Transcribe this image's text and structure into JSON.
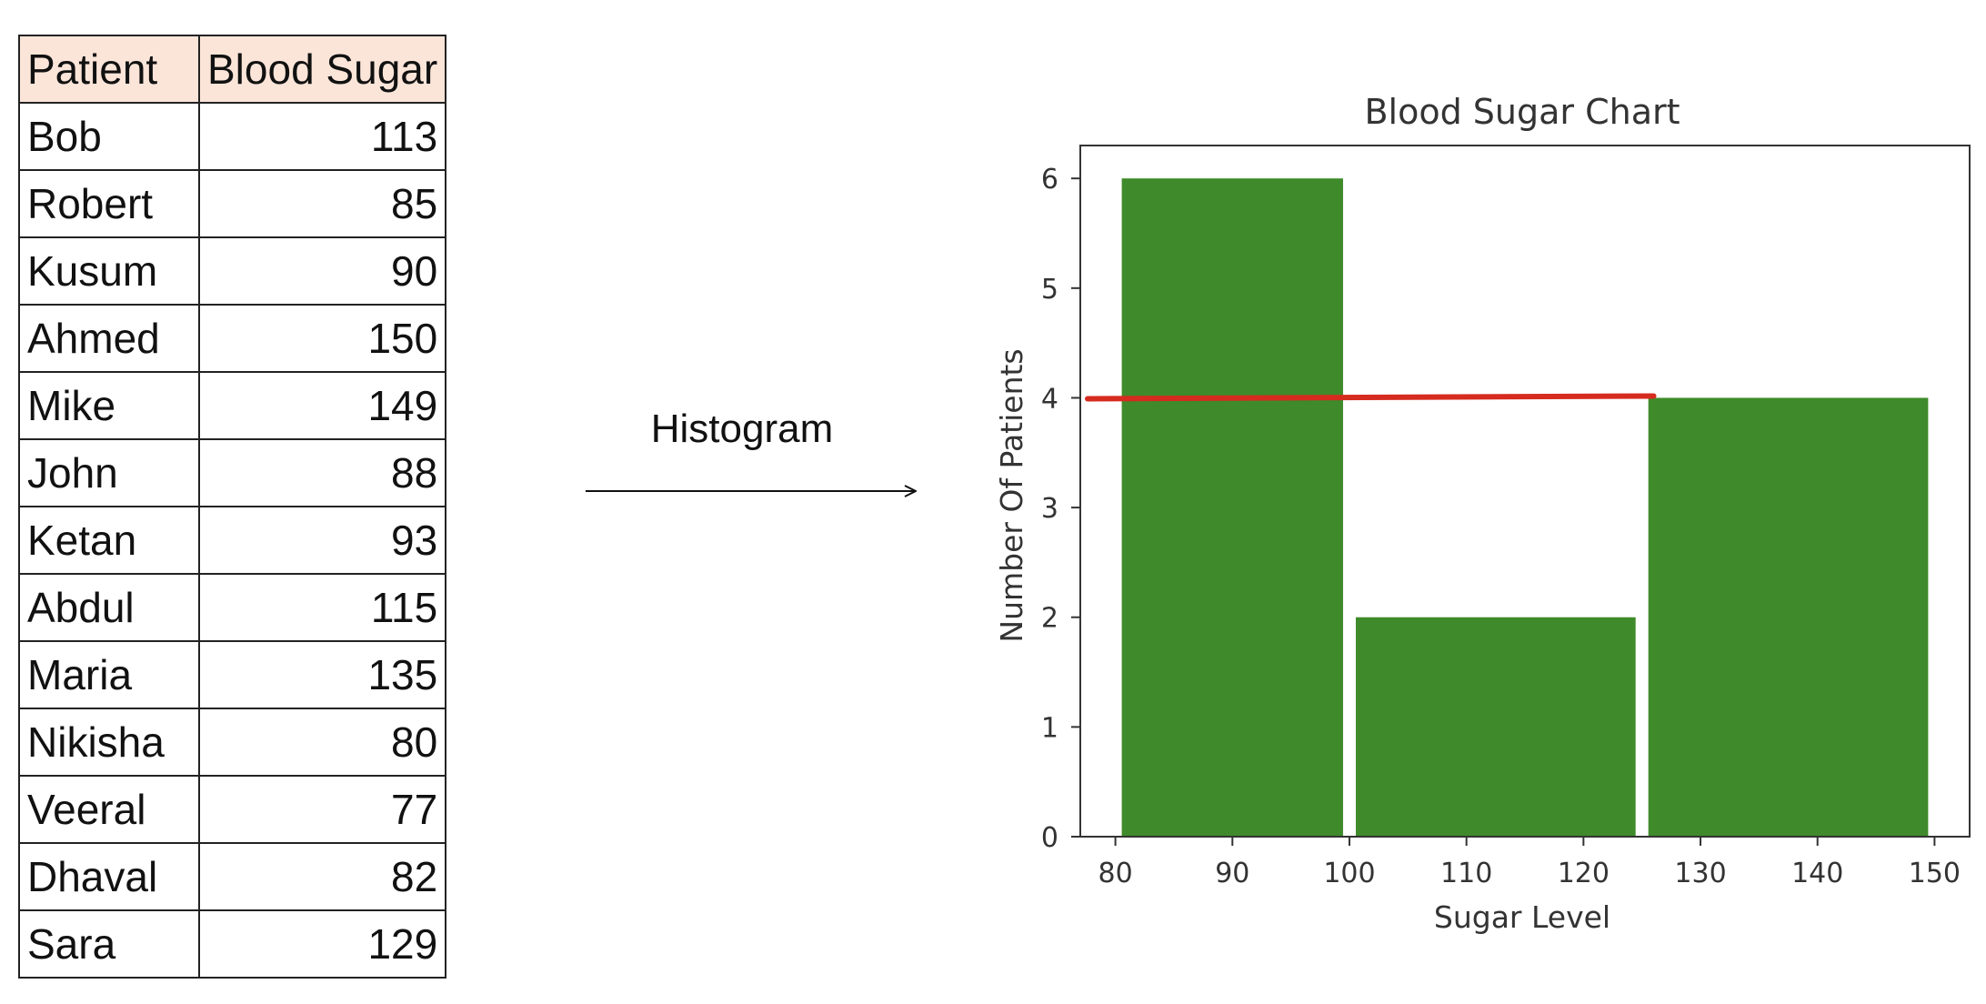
{
  "table": {
    "headers": [
      "Patient",
      "Blood Sugar"
    ],
    "rows": [
      {
        "name": "Bob",
        "value": "113"
      },
      {
        "name": "Robert",
        "value": "85"
      },
      {
        "name": "Kusum",
        "value": "90"
      },
      {
        "name": "Ahmed",
        "value": "150"
      },
      {
        "name": "Mike",
        "value": "149"
      },
      {
        "name": "John",
        "value": "88"
      },
      {
        "name": "Ketan",
        "value": "93"
      },
      {
        "name": "Abdul",
        "value": "115"
      },
      {
        "name": "Maria",
        "value": "135"
      },
      {
        "name": "Nikisha",
        "value": "80"
      },
      {
        "name": "Veeral",
        "value": "77"
      },
      {
        "name": "Dhaval",
        "value": "82"
      },
      {
        "name": "Sara",
        "value": "129"
      }
    ]
  },
  "arrow": {
    "label": "Histogram"
  },
  "chart_data": {
    "type": "bar",
    "title": "Blood Sugar Chart",
    "xlabel": "Sugar Level",
    "ylabel": "Number Of Patients",
    "bins": [
      {
        "start": 80,
        "end": 100,
        "count": 6
      },
      {
        "start": 100,
        "end": 125,
        "count": 2
      },
      {
        "start": 125,
        "end": 150,
        "count": 4
      }
    ],
    "xlim": [
      77,
      153
    ],
    "ylim": [
      0,
      6.3
    ],
    "xticks": [
      "80",
      "90",
      "100",
      "110",
      "120",
      "130",
      "140",
      "150"
    ],
    "yticks": [
      "0",
      "1",
      "2",
      "3",
      "4",
      "5",
      "6"
    ],
    "grid": false,
    "bar_color": "#3f8a2a",
    "annotation_line": {
      "y": 4,
      "x_start": 77,
      "x_end": 126,
      "color": "#d62b1f"
    }
  }
}
